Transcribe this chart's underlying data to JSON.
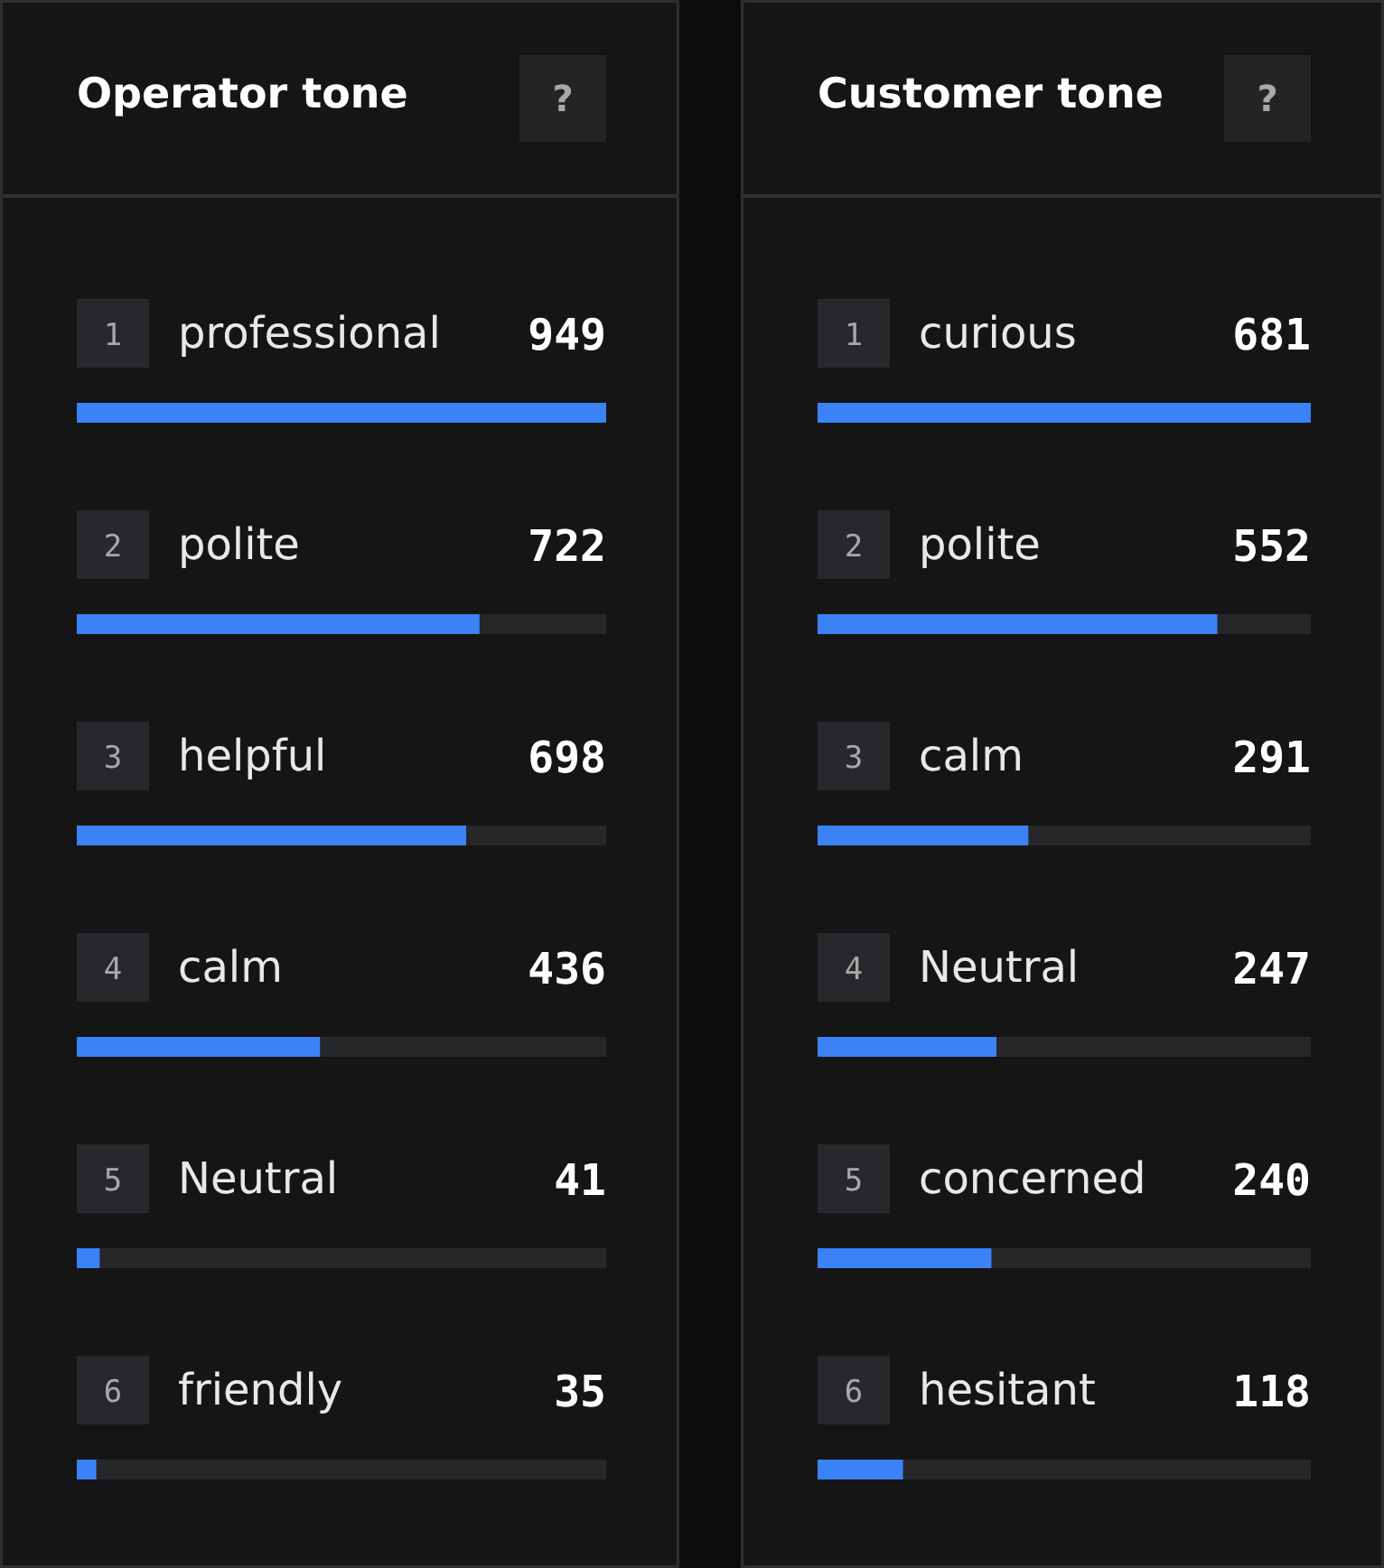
{
  "chart_data": [
    {
      "type": "bar",
      "orientation": "horizontal",
      "title": "Operator tone",
      "categories": [
        "professional",
        "polite",
        "helpful",
        "calm",
        "Neutral",
        "friendly"
      ],
      "values": [
        949,
        722,
        698,
        436,
        41,
        35
      ],
      "color": "#3b82f6",
      "data_labels": true,
      "annotations": [
        "?",
        "1",
        "2",
        "3",
        "4",
        "5",
        "6"
      ]
    },
    {
      "type": "bar",
      "orientation": "horizontal",
      "title": "Customer tone",
      "categories": [
        "curious",
        "polite",
        "calm",
        "Neutral",
        "concerned",
        "hesitant"
      ],
      "values": [
        681,
        552,
        291,
        247,
        240,
        118
      ],
      "color": "#3b82f6",
      "data_labels": true,
      "annotations": [
        "?",
        "1",
        "2",
        "3",
        "4",
        "5",
        "6"
      ]
    }
  ]
}
